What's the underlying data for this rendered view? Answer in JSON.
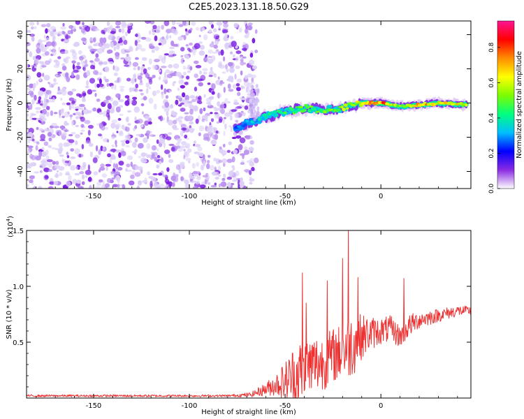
{
  "title": "C2E5.2023.131.18.50.G29",
  "chart_data": [
    {
      "type": "heatmap",
      "xlabel": "Height of straight line (km)",
      "ylabel": "Frequency (Hz)",
      "xlim": [
        -185,
        47
      ],
      "ylim": [
        -50,
        48
      ],
      "xticks": [
        -150,
        -100,
        -50,
        0
      ],
      "yticks": [
        -40,
        -20,
        0,
        20,
        40
      ],
      "colorbar": {
        "label": "Normalized spectral amplitude",
        "range": [
          0,
          0.95
        ],
        "ticks": [
          0.0,
          0.2,
          0.4,
          0.6,
          0.8
        ],
        "colors": [
          "#ffffff",
          "#8a2be2",
          "#0000ff",
          "#00bfff",
          "#00ff7f",
          "#7cfc00",
          "#ffff00",
          "#ff8c00",
          "#ff0000",
          "#ff1493"
        ]
      },
      "noise_region": {
        "x_range": [
          -185,
          -65
        ],
        "freq_range": [
          -50,
          48
        ]
      },
      "signal_track": {
        "x": [
          -76,
          -70,
          -60,
          -50,
          -40,
          -30,
          -20,
          -10,
          0,
          10,
          20,
          30,
          45
        ],
        "freq": [
          -15,
          -12,
          -8,
          -5,
          -3,
          -4,
          -3,
          0,
          0,
          -2,
          -1,
          0,
          -1
        ],
        "peak_amplitude": [
          0.3,
          0.35,
          0.45,
          0.5,
          0.55,
          0.55,
          0.6,
          0.7,
          0.9,
          0.6,
          0.8,
          0.75,
          0.7
        ]
      }
    },
    {
      "type": "line",
      "xlabel": "Height of straight line (km)",
      "ylabel": "SNR (10 * v/v)",
      "y_multiplier": "(x10",
      "y_multiplier_exp": "4",
      "y_multiplier_close": ")",
      "xlim": [
        -185,
        47
      ],
      "ylim": [
        0,
        1.5
      ],
      "xticks": [
        -150,
        -100,
        -50,
        0
      ],
      "yticks": [
        0.5,
        1.0,
        1.5
      ],
      "ytick_labels": [
        "0.5",
        "1.0",
        "1.5"
      ],
      "color": "#ee3030",
      "envelope": {
        "x": [
          -185,
          -80,
          -68,
          -60,
          -55,
          -50,
          -45,
          -40,
          -35,
          -30,
          -25,
          -20,
          -15,
          -10,
          -5,
          0,
          5,
          10,
          15,
          20,
          30,
          40,
          47
        ],
        "base": [
          0.02,
          0.02,
          0.03,
          0.08,
          0.12,
          0.15,
          0.2,
          0.25,
          0.3,
          0.32,
          0.38,
          0.42,
          0.48,
          0.55,
          0.58,
          0.6,
          0.62,
          0.55,
          0.65,
          0.7,
          0.74,
          0.78,
          0.78
        ],
        "amp": [
          0.01,
          0.01,
          0.02,
          0.06,
          0.1,
          0.18,
          0.3,
          0.3,
          0.28,
          0.25,
          0.25,
          0.25,
          0.3,
          0.2,
          0.15,
          0.12,
          0.12,
          0.1,
          0.1,
          0.08,
          0.06,
          0.05,
          0.04
        ]
      },
      "spikes": [
        {
          "x": -41,
          "y": 1.12
        },
        {
          "x": -39,
          "y": 0.85
        },
        {
          "x": -28,
          "y": 1.05
        },
        {
          "x": -20,
          "y": 1.25
        },
        {
          "x": -17,
          "y": 1.5
        },
        {
          "x": -12,
          "y": 1.08
        },
        {
          "x": 12,
          "y": 1.07
        }
      ]
    }
  ]
}
